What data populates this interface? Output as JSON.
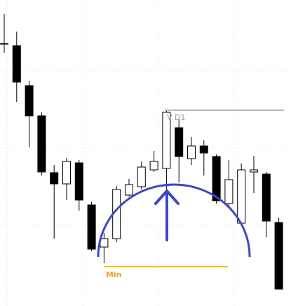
{
  "chart_data": {
    "type": "candlestick",
    "up_color": "#ffffff",
    "down_color": "#000000",
    "candles": [
      {
        "open": 374,
        "high": 416,
        "low": 361,
        "close": 374
      },
      {
        "open": 371,
        "high": 391,
        "low": 291,
        "close": 319
      },
      {
        "open": 314,
        "high": 321,
        "low": 226,
        "close": 271
      },
      {
        "open": 271,
        "high": 276,
        "low": 186,
        "close": 191
      },
      {
        "open": 190,
        "high": 201,
        "low": 96,
        "close": 174
      },
      {
        "open": 174,
        "high": 211,
        "low": 151,
        "close": 206
      },
      {
        "open": 204,
        "high": 208,
        "low": 136,
        "close": 151
      },
      {
        "open": 144,
        "high": 148,
        "low": 78,
        "close": 81
      },
      {
        "open": 84,
        "high": 104,
        "low": 61,
        "close": 96
      },
      {
        "open": 96,
        "high": 171,
        "low": 91,
        "close": 166
      },
      {
        "open": 158,
        "high": 181,
        "low": 156,
        "close": 173
      },
      {
        "open": 170,
        "high": 206,
        "low": 166,
        "close": 198
      },
      {
        "open": 194,
        "high": 221,
        "low": 191,
        "close": 206
      },
      {
        "open": 196,
        "high": 278,
        "low": 161,
        "close": 276
      },
      {
        "open": 254,
        "high": 266,
        "low": 176,
        "close": 213
      },
      {
        "open": 210,
        "high": 241,
        "low": 201,
        "close": 228
      },
      {
        "open": 228,
        "high": 236,
        "low": 186,
        "close": 218
      },
      {
        "open": 213,
        "high": 216,
        "low": 146,
        "close": 150
      },
      {
        "open": 146,
        "high": 208,
        "low": 141,
        "close": 180
      },
      {
        "open": 118,
        "high": 203,
        "low": 116,
        "close": 194
      },
      {
        "open": 191,
        "high": 214,
        "low": 161,
        "close": 194
      },
      {
        "open": 188,
        "high": 191,
        "low": 98,
        "close": 121
      },
      {
        "open": 119,
        "high": 126,
        "low": 24,
        "close": 24
      }
    ],
    "levels": [
      {
        "label": "V D1",
        "value": 279,
        "color": "#a0a0a0"
      },
      {
        "label": "Min",
        "value": 56,
        "color": "#f5c518"
      }
    ]
  }
}
